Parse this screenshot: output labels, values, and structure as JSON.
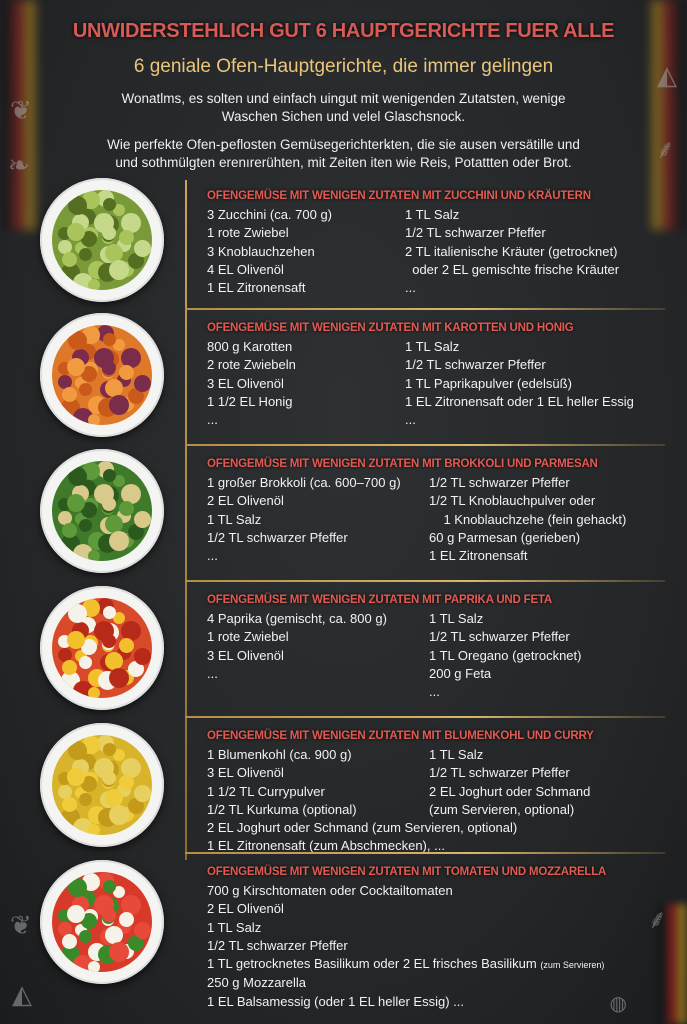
{
  "header": {
    "title": "UNWIDERSTEHLICH GUT 6 HAUPTGERICHTE FUER ALLE",
    "subtitle": "6 geniale Ofen-Hauptgerichte, die immer gelingen",
    "intro_1": [
      "Wonatlms, es solten und einfach uingut mit wenigenden Zutatsten, wenige",
      "Waschen Sichen und velel Glaschsnock."
    ],
    "intro_2": [
      "Wie perfekte Ofen-ꝑeflosten Gemüsegerichterꝃten, die sie ausen versätille und",
      "und sothmülgten erenırerühten, mit Zeiten iten wie Reis, Potattten oder Brot."
    ]
  },
  "colors": {
    "title": "#d65a55",
    "subtitle": "#ecc57c",
    "section_title": "#e25a52",
    "divider": "#c9a45a",
    "background": "#26282a"
  },
  "sections": [
    {
      "title": "OFENGEMÜSE MIT WENIGEN ZUTATEN MIT ZUCCHINI UND KRÄUTERN",
      "dish_icon": "zucchini-bowl",
      "left": [
        "3 Zucchini (ca. 700 g)",
        "1 rote Zwiebel",
        "3 Knoblauchzehen",
        "4 EL Olivenöl",
        "1 EL Zitronensaft"
      ],
      "right": [
        "1 TL Salz",
        "1/2 TL schwarzer Pfeffer",
        "2 TL italienische Kräuter (getrocknet)",
        "  oder 2 EL gemischte frische Kräuter",
        "..."
      ],
      "full": []
    },
    {
      "title": "OFENGEMÜSE MIT WENIGEN ZUTATEN MIT KAROTTEN UND HONIG",
      "dish_icon": "carrots-bowl",
      "left": [
        "800 g Karotten",
        "2 rote Zwiebeln",
        "3 EL Olivenöl",
        "1 1/2 EL Honig",
        "..."
      ],
      "right": [
        "1 TL Salz",
        "1/2 TL schwarzer Pfeffer",
        "1 TL Paprikapulver (edelsüß)",
        "1 EL Zitronensaft oder 1 EL heller Essig",
        "..."
      ],
      "full": []
    },
    {
      "title": "OFENGEMÜSE MIT WENIGEN ZUTATEN MIT BROKKOLI UND PARMESAN",
      "dish_icon": "broccoli-bowl",
      "left": [
        "1 großer Brokkoli (ca. 600–700 g)",
        "2 EL Olivenöl",
        "1 TL Salz",
        "1/2 TL schwarzer Pfeffer",
        "..."
      ],
      "right": [
        "1/2 TL schwarzer Pfeffer",
        "1/2 TL Knoblauchpulver oder",
        "    1 Knoblauchzehe (fein gehackt)",
        "60 g Parmesan (gerieben)",
        "1 EL Zitronensaft"
      ],
      "full": []
    },
    {
      "title": "OFENGEMÜSE MIT WENIGEN ZUTATEN MIT PAPRIKA UND FETA",
      "dish_icon": "paprika-feta-bowl",
      "left": [
        "4 Paprika (gemischt, ca. 800 g)",
        "1 rote Zwiebel",
        "3 EL Olivenöl",
        "..."
      ],
      "right": [
        "1 TL Salz",
        "1/2 TL schwarzer Pfeffer",
        "1 TL Oregano (getrocknet)",
        "200 g Feta",
        "..."
      ],
      "full": []
    },
    {
      "title": "OFENGEMÜSE MIT WENIGEN ZUTATEN MIT BLUMENKOHL UND CURRY",
      "dish_icon": "cauliflower-bowl",
      "left": [
        "1 Blumenkohl (ca. 900 g)",
        "3 EL Olivenöl",
        "1 1/2 TL Currypulver",
        "1/2 TL Kurkuma (optional)"
      ],
      "right": [
        "1 TL Salz",
        "1/2 TL schwarzer Pfeffer",
        "2 EL Joghurt oder Schmand",
        "(zum Servieren, optional)"
      ],
      "full": [
        "2 EL Joghurt oder Schmand (zum Servieren, optional)",
        "1 EL Zitronensaft (zum Abschmecken), ..."
      ]
    },
    {
      "title": "OFENGEMÜSE MIT WENIGEN ZUTATEN MIT TOMATEN UND MOZZARELLA",
      "dish_icon": "tomato-mozzarella-bowl",
      "left": [],
      "right": [],
      "full": [
        "700 g Kirschtomaten oder Cocktailtomaten",
        "2 EL Olivenöl",
        "1 TL Salz",
        "1/2 TL schwarzer Pfeffer",
        "1 TL getrocknetes Basilikum oder 2 EL frisches Basilikum",
        "250 g Mozzarella",
        "1 EL Balsamessig (oder 1 EL heller Essig) ..."
      ],
      "note": "(zum Servieren)"
    }
  ]
}
